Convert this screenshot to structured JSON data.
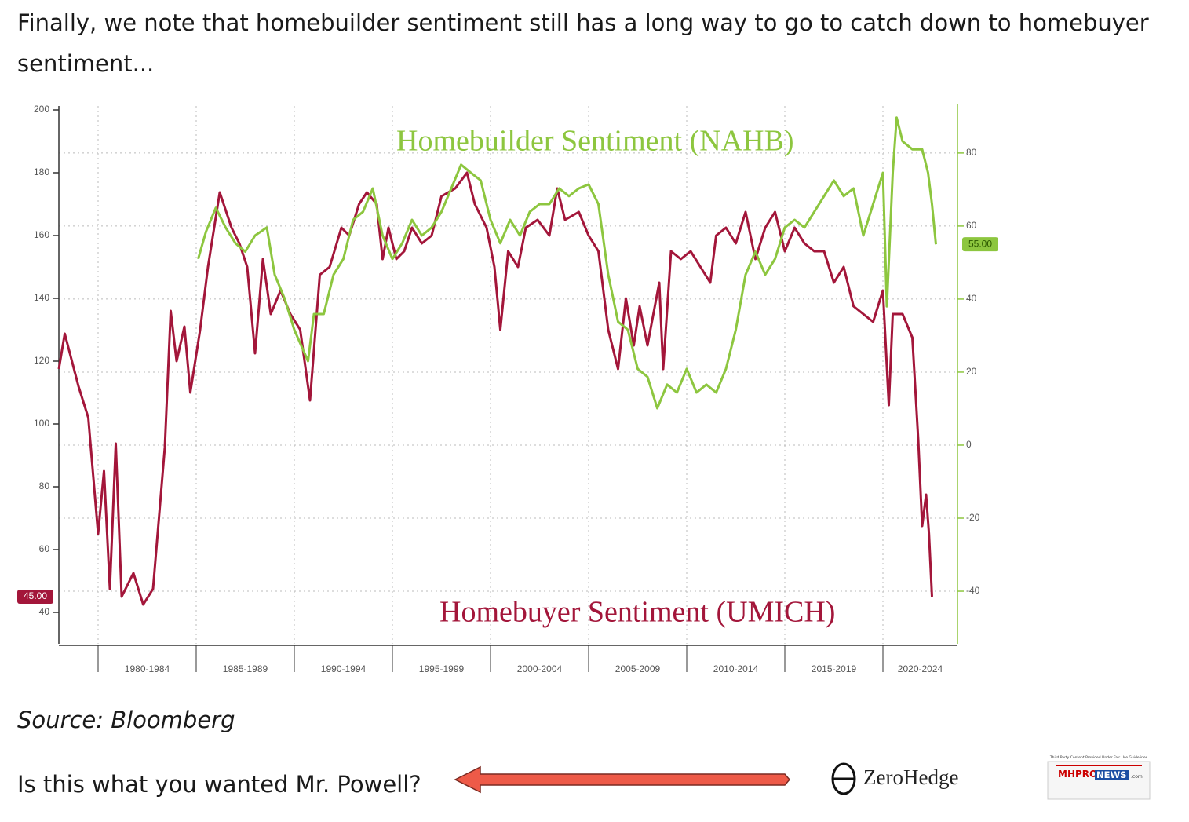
{
  "text": {
    "paragraph_lines": [
      "Finally, we note that homebuilder sentiment still has a long way to go to catch down to homebuyer",
      "sentiment..."
    ],
    "source": "Source: Bloomberg",
    "question": "Is this what you wanted Mr. Powell?",
    "logo_zerohedge": "ZeroHedge",
    "logo_mhpronews": {
      "tagline": "Third Party Content Provided Under Fair Use Guidelines",
      "brand_a": "MHPRO",
      "brand_b": "NEWS",
      "brand_c": ".com"
    }
  },
  "chart_data": {
    "type": "line",
    "x_periods": [
      "1980-1984",
      "1985-1989",
      "1990-1994",
      "1995-1999",
      "2000-2004",
      "2005-2009",
      "2010-2014",
      "2015-2019",
      "2020-2024"
    ],
    "xticks": [
      1980,
      1985,
      1990,
      1995,
      2000,
      2005,
      2010,
      2015,
      2020
    ],
    "xlim": [
      1978,
      2023.8
    ],
    "ylim": [
      30,
      200
    ],
    "yticks": [
      40,
      60,
      80,
      100,
      120,
      140,
      160,
      180,
      200
    ],
    "y2lim": [
      -54.4,
      91.8
    ],
    "y2ticks": [
      -40,
      -20,
      0,
      20,
      40,
      60,
      80
    ],
    "grid": true,
    "series": [
      {
        "name": "Homebuyer Sentiment (UMICH)",
        "color": "#a3163a",
        "x": [
          1978.0,
          1978.3,
          1979.0,
          1979.5,
          1980.0,
          1980.3,
          1980.6,
          1980.9,
          1981.2,
          1981.8,
          1982.3,
          1982.8,
          1983.0,
          1983.4,
          1983.7,
          1984.0,
          1984.4,
          1984.7,
          1985.2,
          1985.6,
          1986.2,
          1986.8,
          1987.2,
          1987.6,
          1988.0,
          1988.4,
          1988.8,
          1989.3,
          1989.8,
          1990.3,
          1990.8,
          1991.3,
          1991.8,
          1992.4,
          1992.8,
          1993.3,
          1993.7,
          1994.2,
          1994.5,
          1994.8,
          1995.2,
          1995.6,
          1996.0,
          1996.5,
          1997.0,
          1997.5,
          1998.2,
          1998.8,
          1999.2,
          1999.8,
          2000.2,
          2000.5,
          2000.9,
          2001.4,
          2001.8,
          2002.4,
          2003.0,
          2003.4,
          2003.8,
          2004.5,
          2005.0,
          2005.5,
          2006.0,
          2006.5,
          2006.9,
          2007.3,
          2007.6,
          2008.0,
          2008.6,
          2008.8,
          2009.2,
          2009.7,
          2010.2,
          2010.7,
          2011.2,
          2011.5,
          2012.0,
          2012.5,
          2013.0,
          2013.5,
          2014.0,
          2014.5,
          2015.0,
          2015.5,
          2016.0,
          2016.5,
          2017.0,
          2017.5,
          2018.0,
          2018.5,
          2019.0,
          2019.5,
          2020.0,
          2020.3,
          2020.5,
          2021.0,
          2021.5,
          2021.8,
          2022.0,
          2022.2,
          2022.35,
          2022.5
        ],
        "values": [
          117.5,
          128.75,
          112,
          102,
          65,
          85,
          47.5,
          93.75,
          45,
          52.5,
          42.5,
          47.5,
          62.5,
          92.5,
          136,
          120,
          131,
          110,
          130,
          150,
          173.75,
          162.5,
          157.5,
          150,
          122.5,
          152.5,
          135,
          142.5,
          135,
          130,
          107.5,
          147.5,
          150,
          162.5,
          160,
          170,
          173.75,
          170,
          152.5,
          162.5,
          152.5,
          155,
          162.5,
          157.5,
          160,
          172.5,
          175,
          180,
          170,
          162.5,
          150,
          130,
          155,
          150,
          162.5,
          165,
          160,
          175,
          165,
          167.5,
          160,
          155,
          130,
          117.5,
          140,
          125,
          137.5,
          125,
          145,
          117.5,
          155,
          152.5,
          155,
          150,
          145,
          160,
          162.5,
          157.5,
          167.5,
          152.5,
          162.5,
          167.5,
          155,
          162.5,
          157.5,
          155,
          155,
          145,
          150,
          137.5,
          135,
          132.5,
          142.5,
          106,
          135,
          135,
          127.5,
          95,
          67.5,
          77.5,
          65,
          45
        ],
        "value_labels": [
          null,
          null,
          null,
          null,
          null,
          null,
          null,
          null,
          null,
          null,
          null,
          null,
          null,
          null,
          null,
          null,
          null,
          null,
          null,
          null,
          null,
          null,
          null,
          null,
          null,
          null,
          null,
          null,
          null,
          null,
          null,
          null,
          null,
          null,
          null,
          null,
          null,
          null,
          null,
          null,
          null,
          null,
          null,
          null,
          null,
          null,
          null,
          null,
          null,
          null,
          null,
          null,
          null,
          null,
          null,
          null,
          null,
          null,
          null,
          null,
          null,
          null,
          null,
          null,
          null,
          null,
          null,
          null,
          null,
          null,
          null,
          null,
          null,
          null,
          null,
          null,
          null,
          null,
          null,
          null,
          null,
          null,
          null,
          null,
          null,
          null,
          null,
          null,
          null,
          null,
          null,
          null,
          null,
          null,
          null,
          null,
          null,
          null,
          null,
          null,
          null,
          "45.00"
        ]
      },
      {
        "name": "Homebuilder Sentiment (NAHB)",
        "color": "#8dc63f",
        "axis": "y2",
        "x": [
          1985.1,
          1985.5,
          1986.0,
          1986.5,
          1987.0,
          1987.5,
          1988.0,
          1988.6,
          1989.0,
          1989.5,
          1990.0,
          1990.7,
          1991.0,
          1991.5,
          1992.0,
          1992.5,
          1993.0,
          1993.5,
          1994.0,
          1994.5,
          1995.0,
          1995.5,
          1996.0,
          1996.5,
          1997.0,
          1997.5,
          1998.0,
          1998.5,
          1999.0,
          1999.5,
          2000.0,
          2000.5,
          2001.0,
          2001.5,
          2002.0,
          2002.5,
          2003.0,
          2003.5,
          2004.0,
          2004.5,
          2005.0,
          2005.5,
          2006.0,
          2006.5,
          2007.0,
          2007.5,
          2008.0,
          2008.5,
          2009.0,
          2009.5,
          2010.0,
          2010.5,
          2011.0,
          2011.5,
          2012.0,
          2012.5,
          2013.0,
          2013.5,
          2014.0,
          2014.5,
          2015.0,
          2015.5,
          2016.0,
          2016.5,
          2017.0,
          2017.5,
          2018.0,
          2018.5,
          2019.0,
          2019.5,
          2020.0,
          2020.2,
          2020.5,
          2020.7,
          2021.0,
          2021.5,
          2022.0,
          2022.3,
          2022.5,
          2022.7
        ],
        "values": [
          51,
          58.5,
          65,
          59.6,
          55.3,
          53,
          57.4,
          59.6,
          46.7,
          40.2,
          31.6,
          23,
          35.9,
          35.9,
          46.7,
          51,
          61.7,
          63.9,
          70.3,
          57.4,
          51,
          55.3,
          61.7,
          57.4,
          59.6,
          63.9,
          70.3,
          76.8,
          74.6,
          72.5,
          61.7,
          55.3,
          61.7,
          57.4,
          63.9,
          66,
          66,
          70.3,
          68.2,
          70.3,
          71.4,
          66,
          46.7,
          33.8,
          31.6,
          20.9,
          18.7,
          10.1,
          16.6,
          14.4,
          20.9,
          14.4,
          16.6,
          14.4,
          20.9,
          31.6,
          46.7,
          53,
          46.7,
          51,
          59.6,
          61.7,
          59.6,
          63.9,
          68.2,
          72.5,
          68.2,
          70.3,
          57.4,
          66,
          74.6,
          38,
          74.6,
          89.7,
          83.2,
          81,
          81,
          74.6,
          66,
          55
        ],
        "value_labels": [
          null,
          null,
          null,
          null,
          null,
          null,
          null,
          null,
          null,
          null,
          null,
          null,
          null,
          null,
          null,
          null,
          null,
          null,
          null,
          null,
          null,
          null,
          null,
          null,
          null,
          null,
          null,
          null,
          null,
          null,
          null,
          null,
          null,
          null,
          null,
          null,
          null,
          null,
          null,
          null,
          null,
          null,
          null,
          null,
          null,
          null,
          null,
          null,
          null,
          null,
          null,
          null,
          null,
          null,
          null,
          null,
          null,
          null,
          null,
          null,
          null,
          null,
          null,
          null,
          null,
          null,
          null,
          null,
          null,
          null,
          null,
          null,
          null,
          null,
          null,
          null,
          null,
          null,
          null,
          "55.00"
        ]
      }
    ]
  }
}
